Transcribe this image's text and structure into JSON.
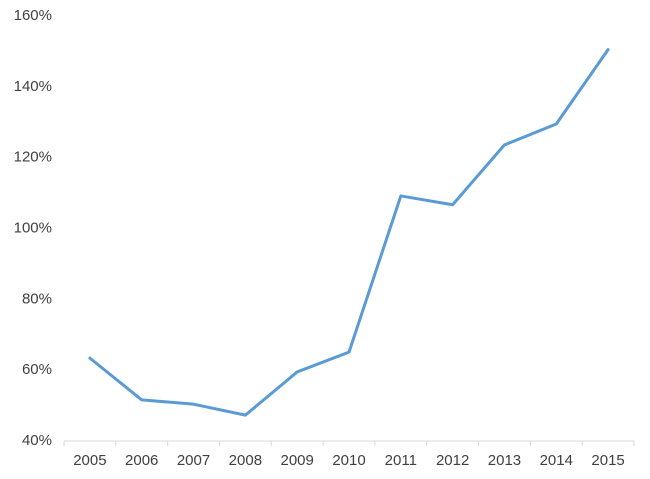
{
  "chart_data": {
    "type": "line",
    "categories": [
      "2005",
      "2006",
      "2007",
      "2008",
      "2009",
      "2010",
      "2011",
      "2012",
      "2013",
      "2014",
      "2015"
    ],
    "values": [
      63.4,
      51.6,
      50.4,
      47.3,
      59.5,
      65.1,
      109.2,
      106.7,
      123.6,
      129.5,
      150.5
    ],
    "color": "#5b9bd5",
    "ylim": [
      40,
      160
    ],
    "yticks": [
      {
        "value": 40,
        "label": "40%"
      },
      {
        "value": 60,
        "label": "60%"
      },
      {
        "value": 80,
        "label": "80%"
      },
      {
        "value": 100,
        "label": "100%"
      },
      {
        "value": 120,
        "label": "120%"
      },
      {
        "value": 140,
        "label": "140%"
      },
      {
        "value": 160,
        "label": "160%"
      }
    ],
    "grid": false
  }
}
